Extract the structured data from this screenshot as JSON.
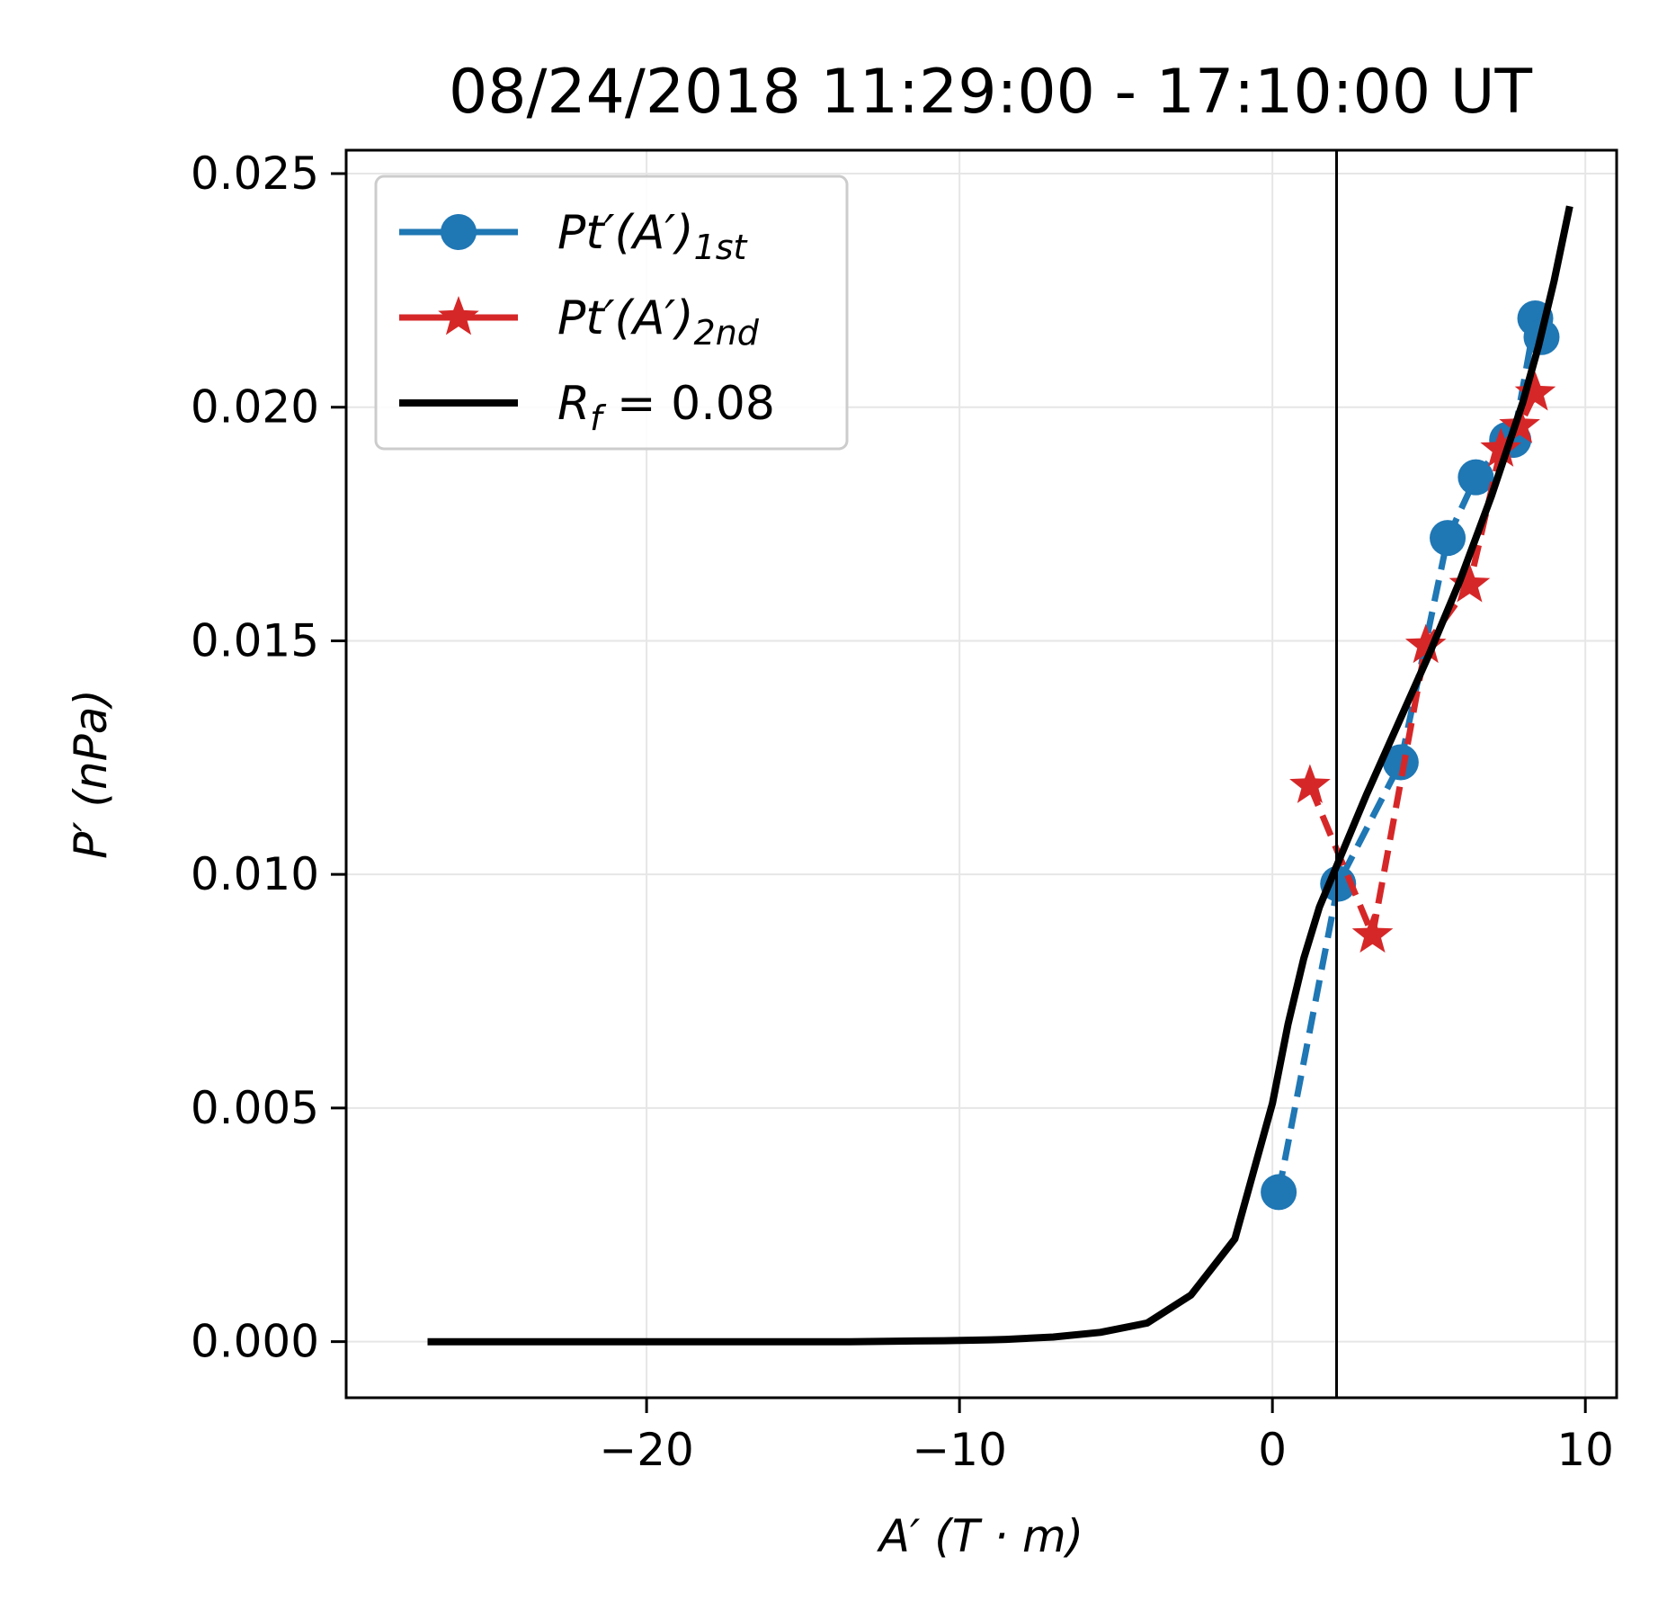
{
  "chart_data": {
    "type": "line",
    "title": "08/24/2018 11:29:00 - 17:10:00 UT",
    "xlabel": "A′ (T · m)",
    "ylabel": "P′ (nPa)",
    "xlim": [
      -29.6,
      11.0
    ],
    "ylim": [
      -0.0012,
      0.0255
    ],
    "xticks": [
      -20,
      -10,
      0,
      10
    ],
    "xtick_labels": [
      "−20",
      "−10",
      "0",
      "10"
    ],
    "yticks": [
      0.0,
      0.005,
      0.01,
      0.015,
      0.02,
      0.025
    ],
    "ytick_labels": [
      "0.000",
      "0.005",
      "0.010",
      "0.015",
      "0.020",
      "0.025"
    ],
    "grid": true,
    "legend_position": "upper-left",
    "vline_x": 2.05,
    "series": [
      {
        "name": "Pt′(A′)1st",
        "label_main": "Pt′(A′)",
        "label_sub": "1st",
        "color": "#1f77b4",
        "marker": "circle",
        "linestyle": "dashed",
        "x": [
          0.2,
          2.1,
          4.1,
          5.6,
          6.5,
          7.5,
          7.7,
          8.4,
          8.6
        ],
        "y": [
          0.0032,
          0.0098,
          0.0124,
          0.0172,
          0.0185,
          0.0193,
          0.0193,
          0.0219,
          0.0215
        ]
      },
      {
        "name": "Pt′(A′)2nd",
        "label_main": "Pt′(A′)",
        "label_sub": "2nd",
        "color": "#d62728",
        "marker": "star",
        "linestyle": "dashed",
        "x": [
          1.2,
          3.2,
          4.9,
          6.3,
          7.3,
          7.9,
          8.4
        ],
        "y": [
          0.0119,
          0.0087,
          0.0149,
          0.0162,
          0.0191,
          0.0196,
          0.0203
        ]
      },
      {
        "name": "R_f = 0.08",
        "label_main": "R",
        "label_sub": "f",
        "label_rest": " = 0.08",
        "color": "#000000",
        "marker": "none",
        "linestyle": "solid",
        "x": [
          -27.0,
          -25.5,
          -24.0,
          -22.5,
          -21.0,
          -19.5,
          -18.0,
          -16.5,
          -15.0,
          -13.5,
          -12.0,
          -10.5,
          -9.0,
          -8.5,
          -7.0,
          -5.5,
          -4.0,
          -2.6,
          -1.2,
          0.0,
          0.5,
          1.0,
          1.5,
          2.0,
          2.5,
          3.0,
          4.0,
          5.0,
          6.0,
          7.0,
          8.0,
          8.5,
          9.0,
          9.5
        ],
        "y": [
          0.0,
          0.0,
          0.0,
          0.0,
          0.0,
          0.0,
          0.0,
          0.0,
          0.0,
          0.0,
          1e-05,
          2e-05,
          4e-05,
          5e-05,
          0.0001,
          0.0002,
          0.0004,
          0.001,
          0.0022,
          0.0051,
          0.0068,
          0.0082,
          0.0093,
          0.0101,
          0.0109,
          0.0117,
          0.0132,
          0.0147,
          0.0163,
          0.0181,
          0.0201,
          0.0213,
          0.0227,
          0.0243
        ]
      }
    ]
  }
}
